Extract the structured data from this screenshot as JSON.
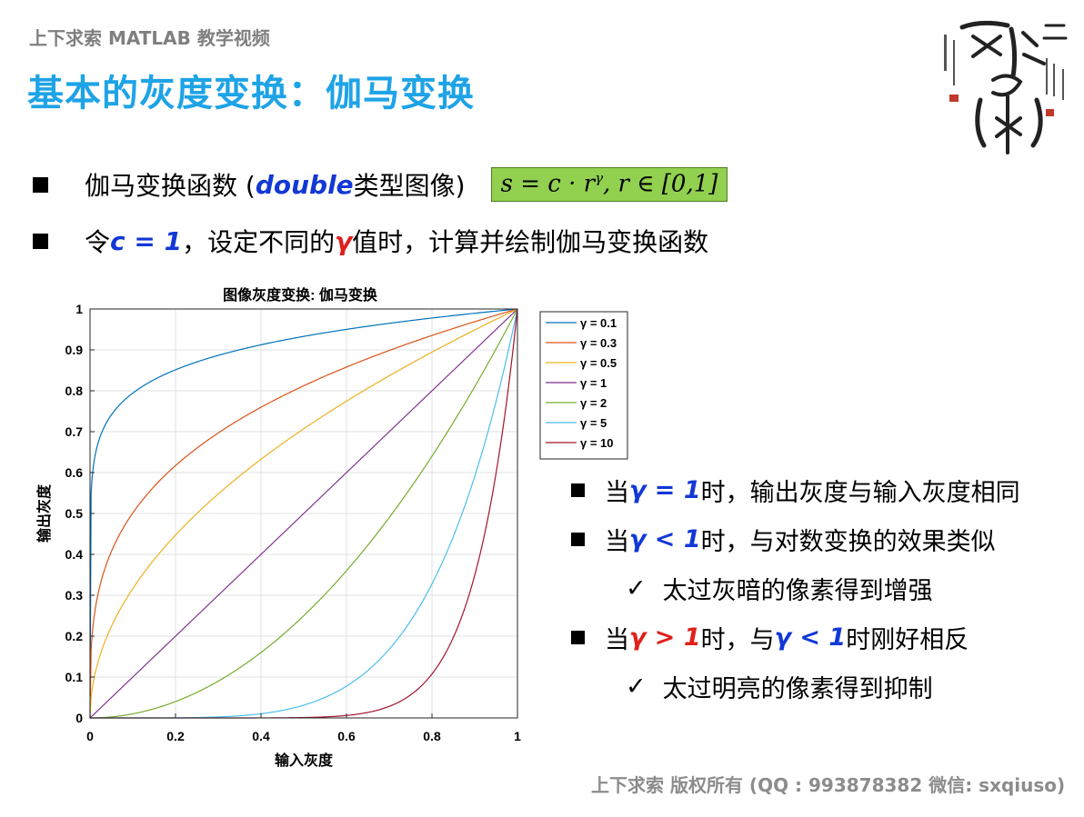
{
  "header": {
    "subtitle": "上下求索 MATLAB 教学视频",
    "title": "基本的灰度变换：伽马变换"
  },
  "bullets": {
    "b1_prefix": "伽马变换函数 (",
    "b1_keyword": "double",
    "b1_suffix": " 类型图像)",
    "formula_main": "s = c · r",
    "formula_exp": "γ",
    "formula_tail": ",  r ∈ [0,1]",
    "b2_prefix": "令 ",
    "b2_c": "c = 1",
    "b2_mid": "，设定不同的 ",
    "b2_gamma": "γ",
    "b2_suffix": " 值时，计算并绘制伽马变换函数"
  },
  "chart_data": {
    "type": "line",
    "title": "图像灰度变换: 伽马变换",
    "xlabel": "输入灰度",
    "ylabel": "输出灰度",
    "xlim": [
      0,
      1
    ],
    "ylim": [
      0,
      1
    ],
    "xticks": [
      "0",
      "0.2",
      "0.4",
      "0.6",
      "0.8",
      "1"
    ],
    "yticks": [
      "0",
      "0.1",
      "0.2",
      "0.3",
      "0.4",
      "0.5",
      "0.6",
      "0.7",
      "0.8",
      "0.9",
      "1"
    ],
    "grid": true,
    "legend_position": "top-right-outside",
    "formula": "s = c * r^gamma, c = 1",
    "series": [
      {
        "name": "γ = 0.1",
        "gamma": 0.1,
        "color": "#0072bd"
      },
      {
        "name": "γ = 0.3",
        "gamma": 0.3,
        "color": "#d95319"
      },
      {
        "name": "γ = 0.5",
        "gamma": 0.5,
        "color": "#edb120"
      },
      {
        "name": "γ = 1",
        "gamma": 1,
        "color": "#7e2f8e"
      },
      {
        "name": "γ = 2",
        "gamma": 2,
        "color": "#77ac30"
      },
      {
        "name": "γ = 5",
        "gamma": 5,
        "color": "#4dbeee"
      },
      {
        "name": "γ = 10",
        "gamma": 10,
        "color": "#a2142f"
      }
    ]
  },
  "notes": {
    "n1_prefix": "当 ",
    "n1_kw": "γ = 1",
    "n1_suffix": " 时，输出灰度与输入灰度相同",
    "n2_prefix": "当 ",
    "n2_kw": "γ < 1",
    "n2_suffix": " 时，与对数变换的效果类似",
    "n3": "太过灰暗的像素得到增强",
    "n4_prefix": "当 ",
    "n4_kw": "γ > 1",
    "n4_mid": " 时，与 ",
    "n4_kw2": "γ < 1",
    "n4_suffix": " 时刚好相反",
    "n5": "太过明亮的像素得到抑制",
    "check": "✓"
  },
  "footer": {
    "text": "上下求索  版权所有  (QQ : 993878382   微信: sxqiuso)"
  }
}
